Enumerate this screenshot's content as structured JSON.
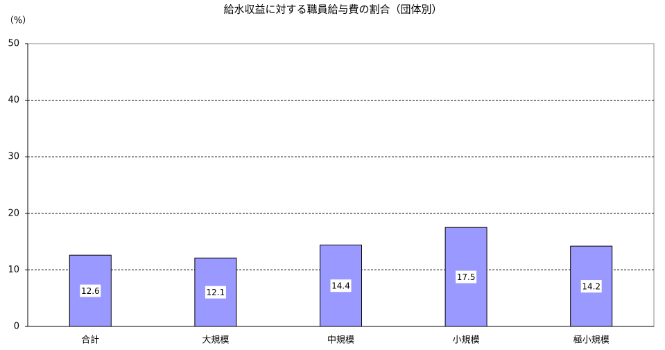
{
  "chart_data": {
    "type": "bar",
    "title": "給水収益に対する職員給与費の割合（団体別）",
    "y_label": "（%）",
    "categories": [
      "合計",
      "大規模",
      "中規模",
      "小規模",
      "極小規模"
    ],
    "values": [
      12.6,
      12.1,
      14.4,
      17.5,
      14.2
    ],
    "color": "#9999ff",
    "ylim": [
      0,
      50
    ],
    "yticks": [
      0,
      10,
      20,
      30,
      40,
      50
    ],
    "grid": true
  }
}
